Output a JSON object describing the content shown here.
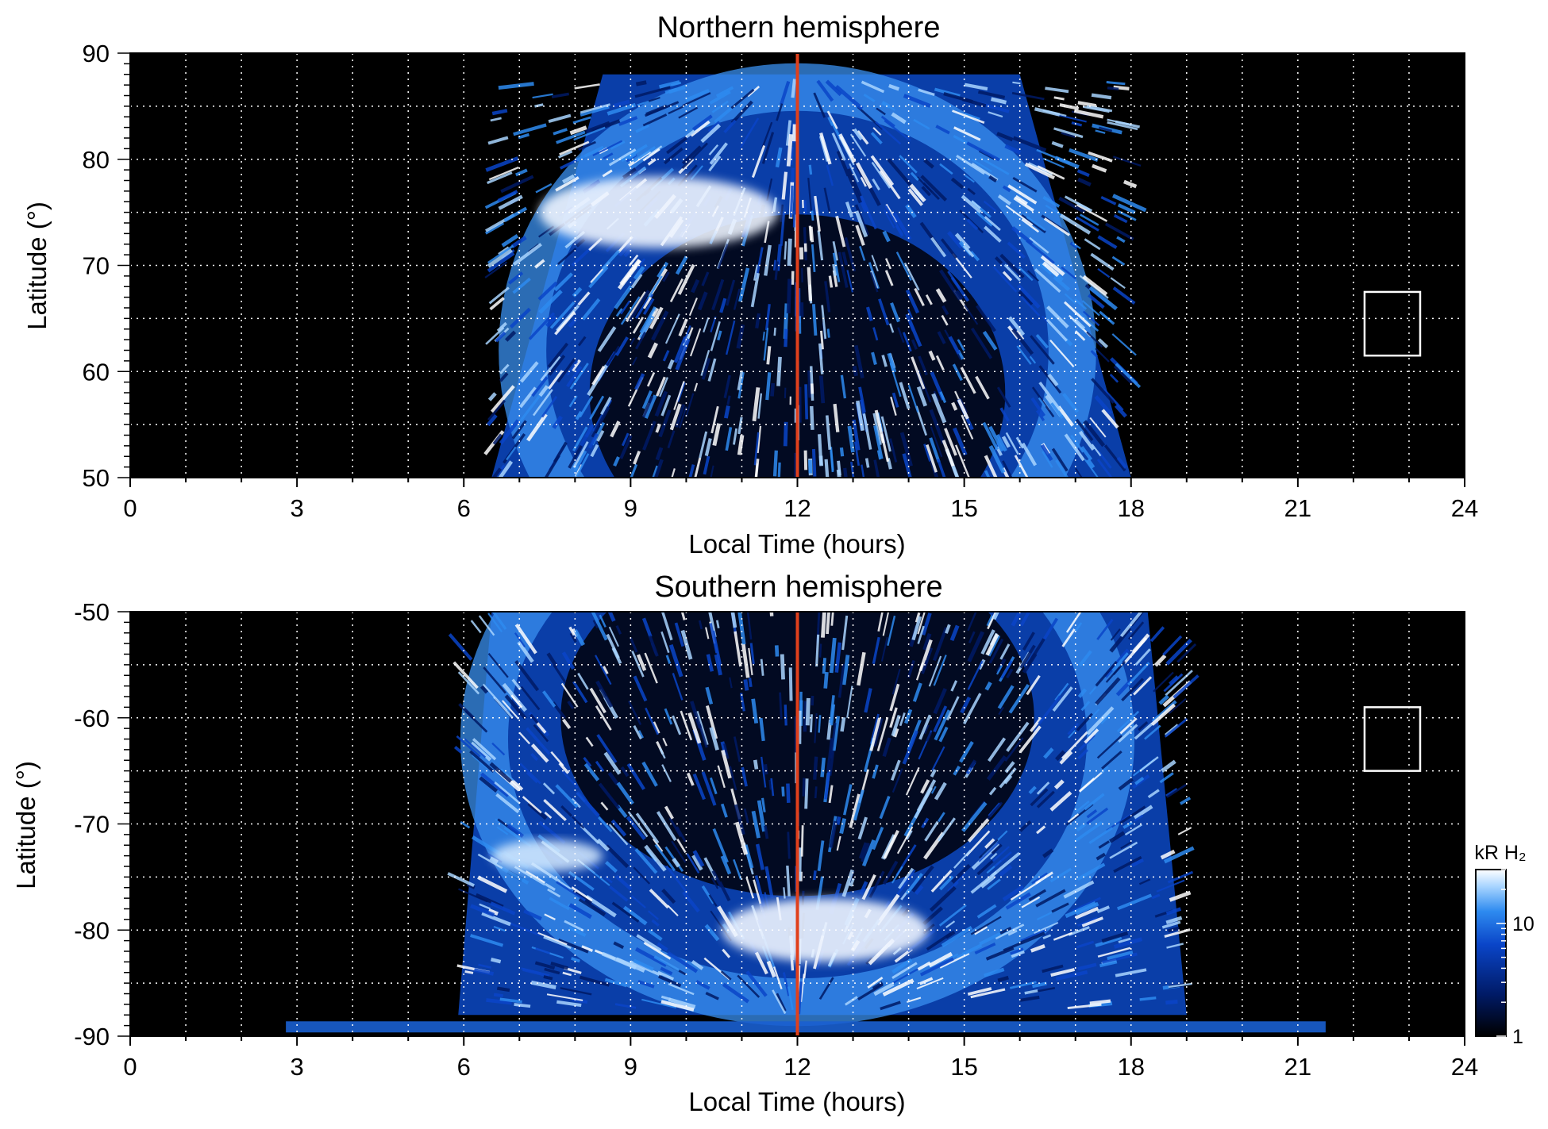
{
  "chart_data": [
    {
      "type": "heatmap",
      "title": "Northern hemisphere",
      "xlabel": "Local Time (hours)",
      "ylabel": "Latitude (°)",
      "xlim": [
        0,
        24
      ],
      "ylim": [
        50,
        90
      ],
      "xticks": [
        0,
        3,
        6,
        9,
        12,
        15,
        18,
        21,
        24
      ],
      "yticks": [
        50,
        60,
        70,
        80,
        90
      ],
      "grid": true,
      "background_color": "#000000",
      "noon_line": {
        "x": 12,
        "color": "#e0401c"
      },
      "coverage_region": {
        "x_start_bottom": 6.5,
        "x_end_bottom": 18.0,
        "x_start_top": 8.5,
        "x_end_top": 16.0,
        "y_top": 88
      },
      "bright_feature": {
        "x_center": 9.5,
        "y_center": 75,
        "description_color": "#eef4ff"
      },
      "reference_box": {
        "x": [
          22.2,
          23.2
        ],
        "y": [
          61.5,
          67.5
        ]
      }
    },
    {
      "type": "heatmap",
      "title": "Southern hemisphere",
      "xlabel": "Local Time (hours)",
      "ylabel": "Latitude (°)",
      "xlim": [
        0,
        24
      ],
      "ylim": [
        -90,
        -50
      ],
      "xticks": [
        0,
        3,
        6,
        9,
        12,
        15,
        18,
        21,
        24
      ],
      "yticks": [
        -90,
        -80,
        -70,
        -60,
        -50
      ],
      "grid": true,
      "background_color": "#000000",
      "noon_line": {
        "x": 12,
        "color": "#e0401c"
      },
      "coverage_region": {
        "x_start_bottom": 5.9,
        "x_end_bottom": 19.0,
        "x_start_top": 6.5,
        "x_end_top": 18.3,
        "y_top": -50
      },
      "bright_feature": {
        "x_center": 12.5,
        "y_center": -80,
        "description_color": "#eef4ff"
      },
      "reference_box": {
        "x": [
          22.2,
          23.2
        ],
        "y": [
          -65,
          -59
        ]
      }
    }
  ],
  "colorbar": {
    "label": "kR H₂",
    "scale": "log",
    "range": [
      1,
      30
    ],
    "ticks": [
      1,
      10
    ],
    "tick_labels": [
      "1",
      "10"
    ],
    "colors": [
      "#000000",
      "#001a66",
      "#0a45c8",
      "#2e8bf0",
      "#a9d5ff",
      "#ffffff"
    ]
  }
}
